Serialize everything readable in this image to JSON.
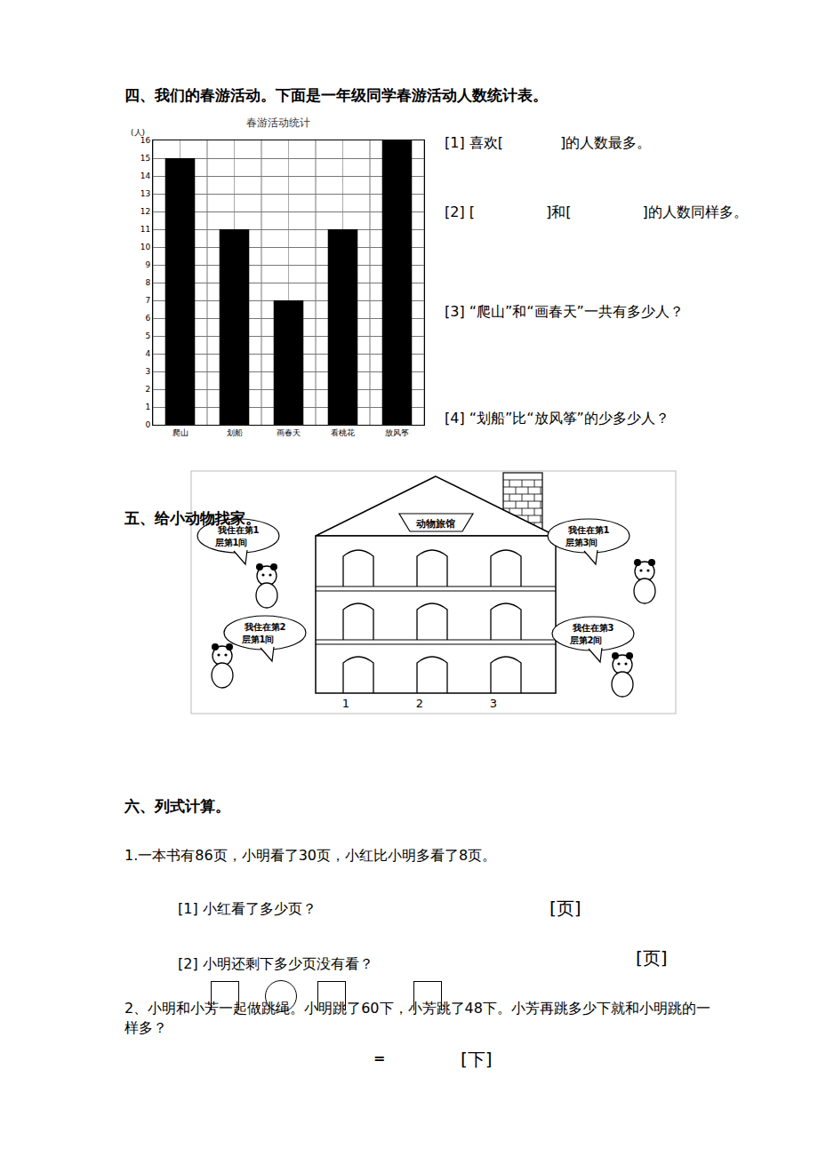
{
  "chart_data": {
    "type": "bar",
    "title": "春游活动统计",
    "y_label": "(人)",
    "categories": [
      "爬山",
      "划船",
      "画春天",
      "看桃花",
      "放风筝"
    ],
    "values": [
      15,
      11,
      7,
      11,
      16
    ],
    "color": "#000000",
    "ylim": [
      0,
      16
    ],
    "yticks": [
      0,
      1,
      2,
      3,
      4,
      5,
      6,
      7,
      8,
      9,
      10,
      11,
      12,
      13,
      14,
      15,
      16
    ],
    "grid": true
  },
  "document": {
    "section4": {
      "heading": "四、我们的春游活动。下面是一年级同学春游活动人数统计表。",
      "questions": [
        "[1] 喜欢[　　　　]的人数最多。",
        "[2] [　　　　　]和[　　　　　]的人数同样多。",
        "[3] “爬山”和“画春天”一共有多少人？",
        "[4] “划船”比“放风筝”的少多少人？"
      ]
    },
    "section5": {
      "heading": "五、给小动物找家。",
      "sign": "动物旅馆",
      "room_numbers": [
        "1",
        "2",
        "3"
      ],
      "bubbles": [
        [
          "我住在第1",
          "层第1间"
        ],
        [
          "我住在第2",
          "层第1间"
        ],
        [
          "我住在第1",
          "层第3间"
        ],
        [
          "我住在第3",
          "层第2间"
        ]
      ]
    },
    "section6": {
      "heading": "六、列式计算。",
      "problem1": {
        "text": "1.一本书有86页，小明看了30页，小红比小明多看了8页。",
        "questions": [
          {
            "text": "[1] 小红看了多少页？",
            "unit": "[页]"
          },
          {
            "text": "[2] 小明还剩下多少页没有看？",
            "unit": "[页]"
          }
        ]
      },
      "problem2": {
        "text": "2、小明和小芳一起做跳绳。小明跳了60下，小芳跳了48下。小芳再跳多少下就和小明跳的一样多？",
        "equals": "=",
        "unit": "[下]"
      }
    }
  }
}
